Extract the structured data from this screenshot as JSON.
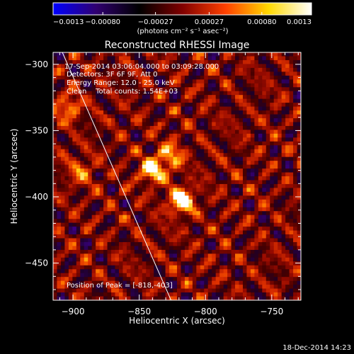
{
  "chart_data": {
    "type": "heatmap",
    "title": "Reconstructed RHESSI Image",
    "xlabel": "Heliocentric X (arcsec)",
    "ylabel": "Heliocentric Y (arcsec)",
    "xlim": [
      -915,
      -728
    ],
    "ylim": [
      -478,
      -291
    ],
    "x_ticks": [
      -900,
      -850,
      -800,
      -750
    ],
    "y_ticks": [
      -300,
      -350,
      -400,
      -450
    ],
    "x_tick_labels": [
      "−900",
      "−850",
      "−800",
      "−750"
    ],
    "y_tick_labels": [
      "−300",
      "−350",
      "−400",
      "−450"
    ],
    "colorbar": {
      "range": [
        -0.0013,
        0.0013
      ],
      "ticks": [
        -0.0013,
        -0.0008,
        -0.00027,
        0.00027,
        0.0008,
        0.0013
      ],
      "tick_labels": [
        "−0.0013",
        "−0.00080",
        "−0.00027",
        "0.00027",
        "0.00080",
        "0.0013"
      ],
      "units": "(photons cm⁻² s⁻¹ asec⁻²)",
      "colors": [
        "#0000ff",
        "#300070",
        "#000000",
        "#800000",
        "#ff4000",
        "#ffd800",
        "#ffffff"
      ]
    },
    "peaks": [
      {
        "x": -818,
        "y": -403,
        "value": 0.0013
      },
      {
        "x": -840,
        "y": -380,
        "value": 0.0011
      },
      {
        "x": -826,
        "y": -369,
        "value": 0.0008
      },
      {
        "x": -904,
        "y": -333,
        "value": 0.0008
      },
      {
        "x": -894,
        "y": -381,
        "value": 0.0006
      }
    ],
    "limb_line": [
      [
        -908,
        -291
      ],
      [
        -826,
        -478
      ]
    ],
    "peak_position": [
      -818,
      -403
    ]
  },
  "overlay": {
    "line1": "17-Sep-2014 03:06:04.000 to 03:09:28.000",
    "line2": "Detectors: 3F 6F 9F, Att 0",
    "line3": "Energy Range: 12.0 - 25.0 keV",
    "line4": "Clean    Total counts: 1.54E+03",
    "peak_label": "Position of Peak = [-818,-403]"
  },
  "footer": {
    "timestamp": "18-Dec-2014 14:23"
  },
  "colors": {
    "background": "#000000",
    "text": "#ffffff",
    "limb": "#ffffff"
  }
}
